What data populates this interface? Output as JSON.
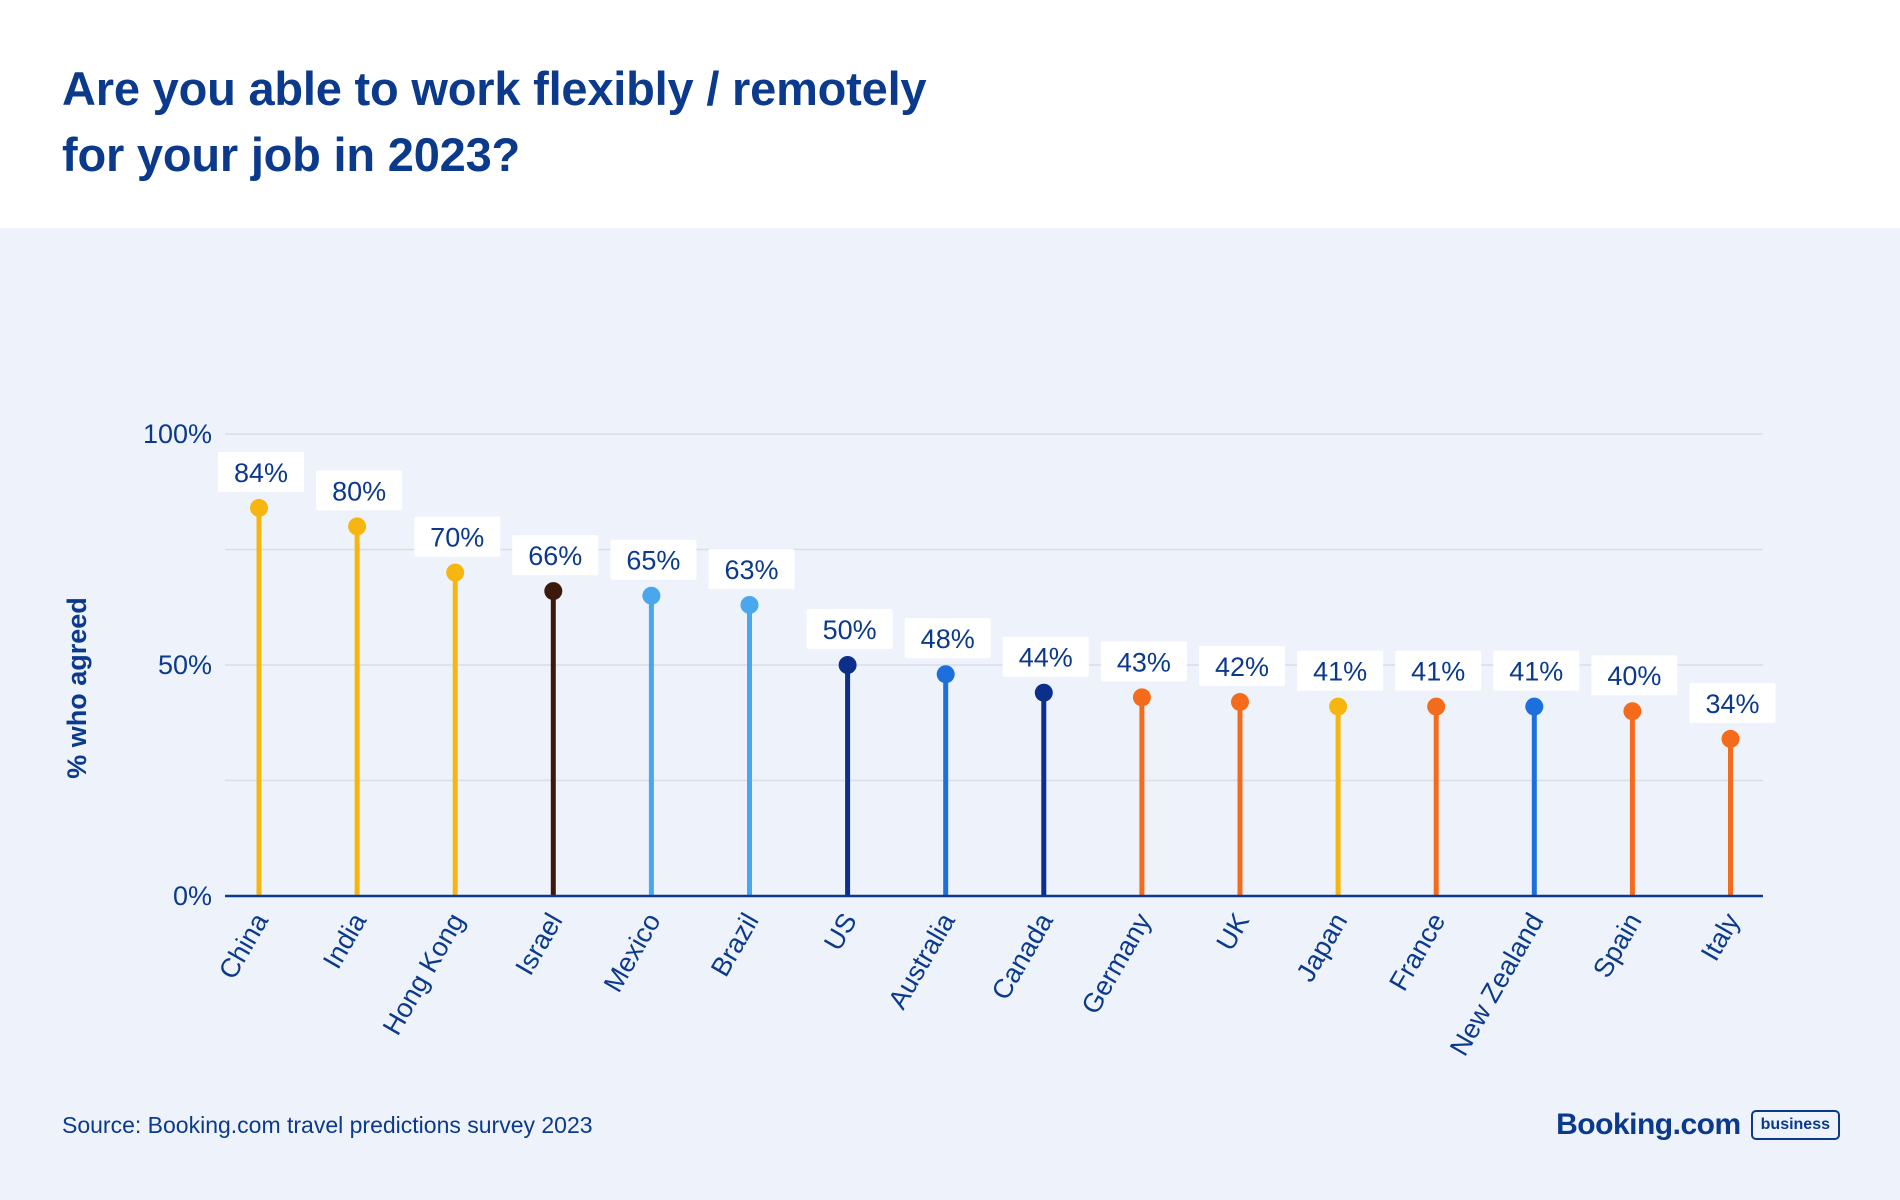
{
  "title_line1": "Are you able to work flexibly / remotely",
  "title_line2": "for your job in 2023?",
  "source": "Source: Booking.com travel predictions survey 2023",
  "brand": {
    "name": "Booking.com",
    "badge": "business"
  },
  "chart_data": {
    "type": "lollipop",
    "title": "Are you able to work flexibly / remotely for your job in 2023?",
    "xlabel": "",
    "ylabel": "% who agreed",
    "ylim": [
      0,
      100
    ],
    "yticks": [
      0,
      50,
      100
    ],
    "ytick_labels": [
      "0%",
      "50%",
      "100%"
    ],
    "grid": true,
    "categories": [
      "China",
      "India",
      "Hong Kong",
      "Israel",
      "Mexico",
      "Brazil",
      "US",
      "Australia",
      "Canada",
      "Germany",
      "UK",
      "Japan",
      "France",
      "New Zealand",
      "Spain",
      "Italy"
    ],
    "values": [
      84,
      80,
      70,
      66,
      65,
      63,
      50,
      48,
      44,
      43,
      42,
      41,
      41,
      41,
      40,
      34
    ],
    "value_labels": [
      "84%",
      "80%",
      "70%",
      "66%",
      "65%",
      "63%",
      "50%",
      "48%",
      "44%",
      "43%",
      "42%",
      "41%",
      "41%",
      "41%",
      "40%",
      "34%"
    ],
    "colors": [
      "#f7b50f",
      "#f7b50f",
      "#f7b50f",
      "#3b1a0c",
      "#4aa7ee",
      "#4aa7ee",
      "#0b2f8a",
      "#1d6fdc",
      "#0b2f8a",
      "#f56b1c",
      "#f56b1c",
      "#f7b50f",
      "#f56b1c",
      "#1d6fdc",
      "#f56b1c",
      "#f56b1c"
    ]
  }
}
